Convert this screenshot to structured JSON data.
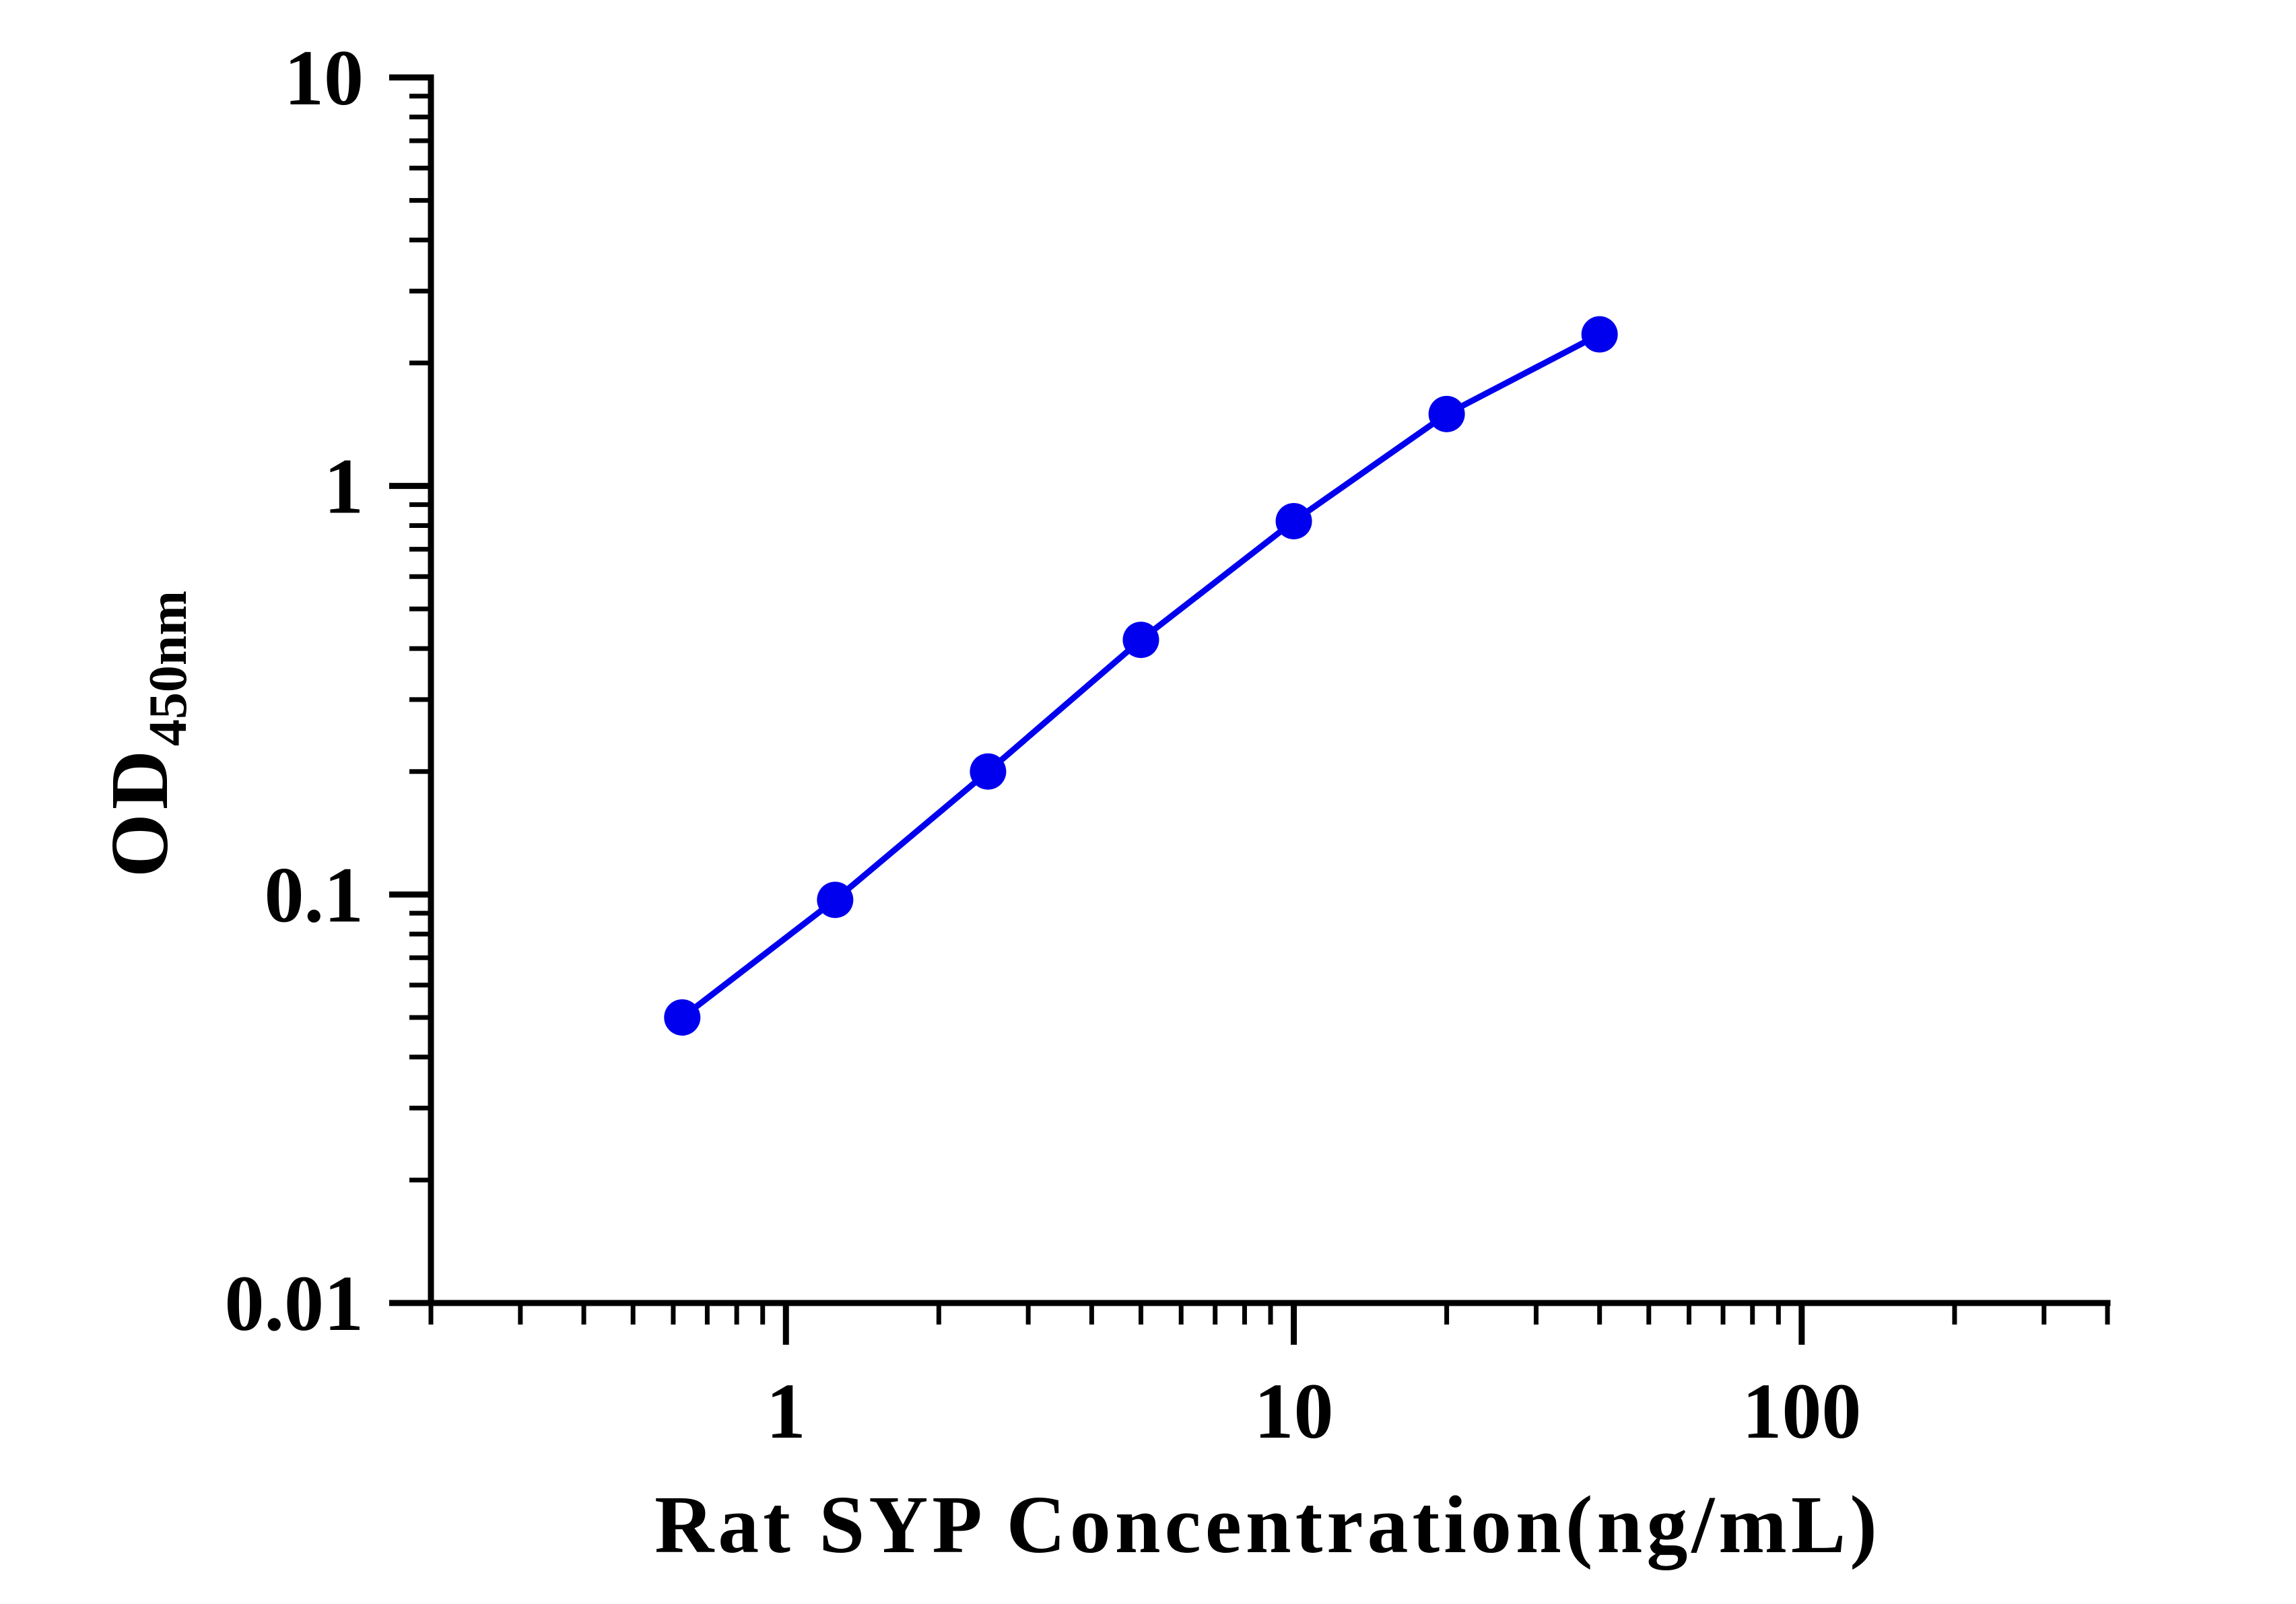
{
  "chart_data": {
    "type": "line",
    "title": "",
    "xlabel": "Rat SYP Concentration(ng/mL)",
    "ylabel": {
      "main": "OD",
      "subscript": "450nm"
    },
    "xscale": "log",
    "yscale": "log",
    "xlim": [
      0.2,
      400
    ],
    "ylim": [
      0.01,
      10
    ],
    "x_ticks": [
      {
        "value": 1,
        "label": "1"
      },
      {
        "value": 10,
        "label": "10"
      },
      {
        "value": 100,
        "label": "100"
      }
    ],
    "y_ticks": [
      {
        "value": 0.01,
        "label": "0.01"
      },
      {
        "value": 0.1,
        "label": "0.1"
      },
      {
        "value": 1,
        "label": "1"
      },
      {
        "value": 10,
        "label": "10"
      }
    ],
    "grid": false,
    "legend": "none",
    "series": [
      {
        "color": "#0000ee",
        "marker": "circle",
        "x": [
          0.625,
          1.25,
          2.5,
          5,
          10,
          20,
          40
        ],
        "y": [
          0.05,
          0.097,
          0.2,
          0.42,
          0.82,
          1.5,
          2.35
        ]
      }
    ]
  }
}
